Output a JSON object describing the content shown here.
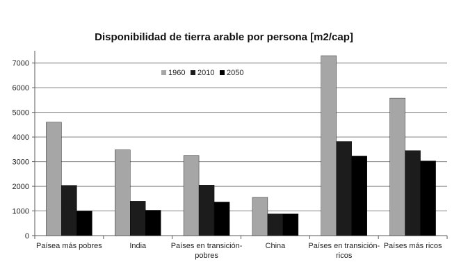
{
  "chart_data": {
    "type": "bar",
    "title": "Disponibilidad de tierra arable por persona [m2/cap]",
    "xlabel": "",
    "ylabel": "",
    "ylim": [
      0,
      7500
    ],
    "yticks": [
      0,
      1000,
      2000,
      3000,
      4000,
      5000,
      6000,
      7000
    ],
    "grid": true,
    "legend_position": "top-center",
    "categories": [
      [
        "Paísea más pobres"
      ],
      [
        "India"
      ],
      [
        "Países en transición-",
        "pobres"
      ],
      [
        "China"
      ],
      [
        "Países en transición-",
        "ricos"
      ],
      [
        "Países más ricos"
      ]
    ],
    "series": [
      {
        "name": "1960",
        "color": "#a6a6a6",
        "values": [
          4600,
          3480,
          3250,
          1550,
          7300,
          5580
        ]
      },
      {
        "name": "2010",
        "color": "#1c1c1c",
        "values": [
          2040,
          1400,
          2050,
          880,
          3820,
          3450
        ]
      },
      {
        "name": "2050",
        "color": "#000000",
        "values": [
          1000,
          1030,
          1360,
          880,
          3230,
          3030
        ]
      }
    ]
  }
}
